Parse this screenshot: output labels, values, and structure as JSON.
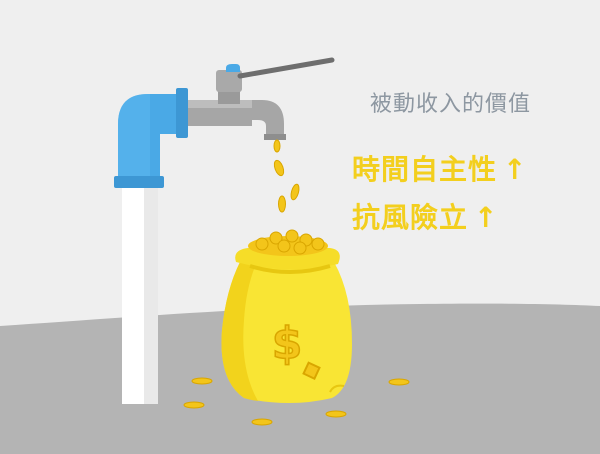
{
  "caption": "被動收入的價值",
  "benefits": [
    {
      "label": "時間自主性",
      "arrow": "↑"
    },
    {
      "label": "抗風險立",
      "arrow": "↑"
    }
  ],
  "colors": {
    "background": "#efefef",
    "ground": "#b4b4b4",
    "pipe_blue": "#4aa9e6",
    "pipe_white": "#ffffff",
    "faucet_gray": "#a6a6a6",
    "coin_gold": "#f3c51a",
    "bag_yellow": "#f9e534",
    "caption_gray": "#8d97a1",
    "benefit_yellow": "#f3cf1e"
  },
  "icons": [
    "faucet-icon",
    "coin-icon",
    "money-bag-icon",
    "dollar-sign-icon"
  ],
  "bag_symbol": "$"
}
